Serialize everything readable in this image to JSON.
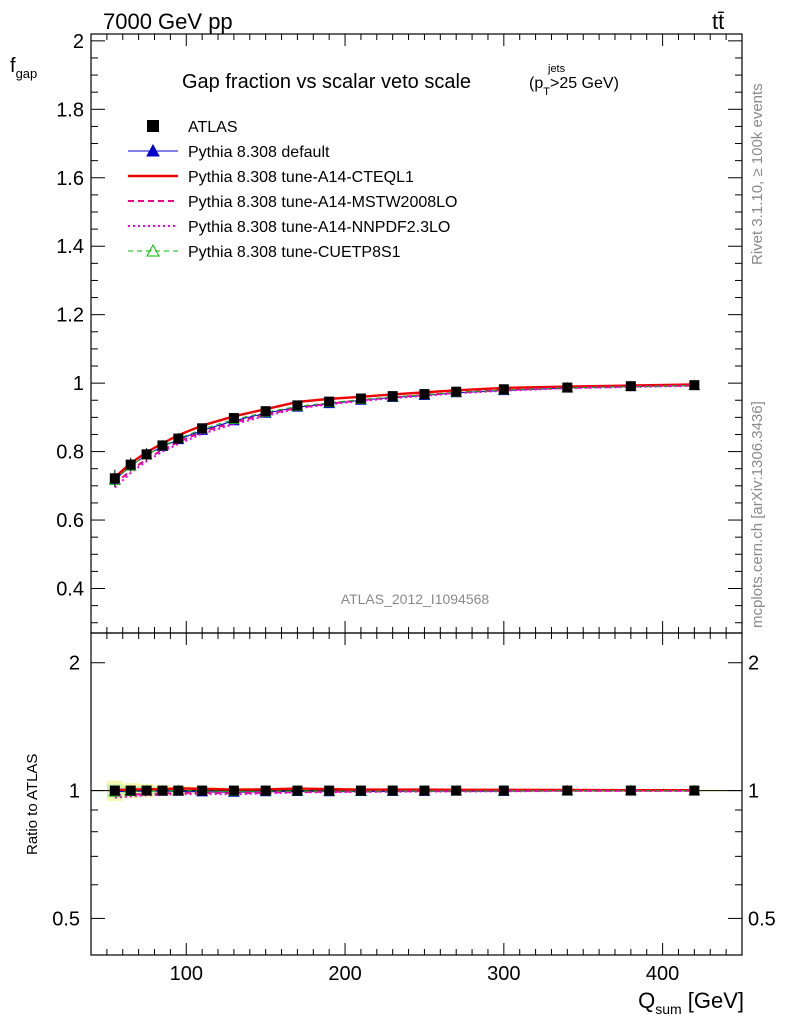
{
  "header": {
    "left": "7000 GeV pp",
    "right": "tt̄"
  },
  "side_text": {
    "top": "Rivet 3.1.10, ≥ 100k events",
    "bottom": "mcplots.cern.ch [arXiv:1306.3436]"
  },
  "watermark": "ATLAS_2012_I1094568",
  "chart_data": {
    "type": "scatter",
    "title": "Gap fraction vs scalar veto scale",
    "title_cut": {
      "open": "(p",
      "sup": "jets",
      "sub": "T",
      "close": ">25 GeV)"
    },
    "xlabel": {
      "main": "Q",
      "sub": "sum",
      "unit": " [GeV]"
    },
    "ylabel": {
      "main": "f",
      "sub": "gap"
    },
    "ratio_ylabel": "Ratio to ATLAS",
    "xlim": [
      40,
      450
    ],
    "ylim": [
      0.27,
      2.02
    ],
    "ratio_ylim": [
      0.41,
      2.35
    ],
    "x_ticks": [
      "100",
      "200",
      "300",
      "400"
    ],
    "y_ticks": [
      "0.4",
      "0.6",
      "0.8",
      "1",
      "1.2",
      "1.4",
      "1.6",
      "1.8",
      "2"
    ],
    "ratio_ticks": [
      "0.5",
      "1",
      "2"
    ],
    "legend_position": "top-left",
    "x": [
      55,
      65,
      75,
      85,
      95,
      110,
      130,
      150,
      170,
      190,
      210,
      230,
      250,
      270,
      300,
      340,
      380,
      420
    ],
    "series": [
      {
        "name": "ATLAS",
        "color": "#000000",
        "style": "marker-square",
        "values": [
          0.722,
          0.762,
          0.792,
          0.818,
          0.838,
          0.868,
          0.898,
          0.918,
          0.935,
          0.946,
          0.955,
          0.962,
          0.968,
          0.975,
          0.982,
          0.987,
          0.991,
          0.994
        ],
        "errors": [
          0.025,
          0.02,
          0.018,
          0.015,
          0.013,
          0.011,
          0.009,
          0.008,
          0.007,
          0.006,
          0.006,
          0.005,
          0.005,
          0.005,
          0.004,
          0.004,
          0.004,
          0.003
        ]
      },
      {
        "name": "Pythia 8.308 default",
        "color": "#0000cc",
        "style": "solid-triangle",
        "values": [
          0.718,
          0.758,
          0.79,
          0.815,
          0.835,
          0.862,
          0.89,
          0.912,
          0.93,
          0.94,
          0.95,
          0.958,
          0.964,
          0.972,
          0.978,
          0.986,
          0.99,
          0.993
        ]
      },
      {
        "name": "Pythia 8.308 tune-A14-CTEQL1",
        "color": "#ee0000",
        "style": "solid-thick",
        "values": [
          0.725,
          0.766,
          0.798,
          0.824,
          0.848,
          0.876,
          0.903,
          0.924,
          0.945,
          0.954,
          0.96,
          0.967,
          0.973,
          0.979,
          0.986,
          0.99,
          0.993,
          0.996
        ]
      },
      {
        "name": "Pythia 8.308 tune-A14-MSTW2008LO",
        "color": "#ee0088",
        "style": "dashed",
        "values": [
          0.705,
          0.745,
          0.778,
          0.805,
          0.828,
          0.858,
          0.885,
          0.908,
          0.928,
          0.94,
          0.95,
          0.958,
          0.965,
          0.972,
          0.98,
          0.986,
          0.99,
          0.993
        ]
      },
      {
        "name": "Pythia 8.308 tune-A14-NNPDF2.3LO",
        "color": "#ee00ee",
        "style": "dotted",
        "values": [
          0.695,
          0.738,
          0.772,
          0.8,
          0.822,
          0.852,
          0.88,
          0.904,
          0.926,
          0.938,
          0.948,
          0.956,
          0.963,
          0.97,
          0.978,
          0.985,
          0.989,
          0.992
        ]
      },
      {
        "name": "Pythia 8.308 tune-CUETP8S1",
        "color": "#00bb00",
        "style": "dashed-open-triangle",
        "values": [
          0.716,
          0.758,
          0.79,
          0.816,
          0.838,
          0.866,
          0.894,
          0.915,
          0.932,
          0.943,
          0.952,
          0.96,
          0.966,
          0.973,
          0.98,
          0.986,
          0.99,
          0.993
        ]
      }
    ]
  }
}
